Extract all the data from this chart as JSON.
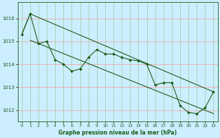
{
  "title": "Graphe pression niveau de la mer (hPa)",
  "bg_color": "#cceeff",
  "plot_bg_color": "#cceeff",
  "grid_color_h": "#ff9999",
  "grid_color_v": "#99cc99",
  "line_color": "#1a5c1a",
  "marker_color": "#1a5c1a",
  "xlim": [
    -0.5,
    23.5
  ],
  "ylim": [
    1011.5,
    1016.7
  ],
  "yticks": [
    1012,
    1013,
    1014,
    1015,
    1016
  ],
  "xticks": [
    0,
    1,
    2,
    3,
    4,
    5,
    6,
    7,
    8,
    9,
    10,
    11,
    12,
    13,
    14,
    15,
    16,
    17,
    18,
    19,
    20,
    21,
    22,
    23
  ],
  "series1_x": [
    0,
    1,
    2,
    3,
    4,
    5,
    6,
    7,
    8,
    9,
    10,
    11,
    12,
    13,
    14,
    15,
    16,
    17,
    18,
    19,
    20,
    21,
    22,
    23
  ],
  "series1_y": [
    1015.3,
    1016.2,
    1014.9,
    1015.0,
    1014.2,
    1014.0,
    1013.7,
    1013.8,
    1014.3,
    1014.65,
    1014.45,
    1014.45,
    1014.3,
    1014.2,
    1014.15,
    1014.0,
    1013.1,
    1013.2,
    1013.2,
    1012.2,
    1011.9,
    1011.85,
    1012.1,
    1012.8
  ],
  "series2_x": [
    0,
    1,
    23
  ],
  "series2_y": [
    1015.3,
    1016.2,
    1012.8
  ],
  "series3_x": [
    1,
    23
  ],
  "series3_y": [
    1015.05,
    1011.85
  ]
}
